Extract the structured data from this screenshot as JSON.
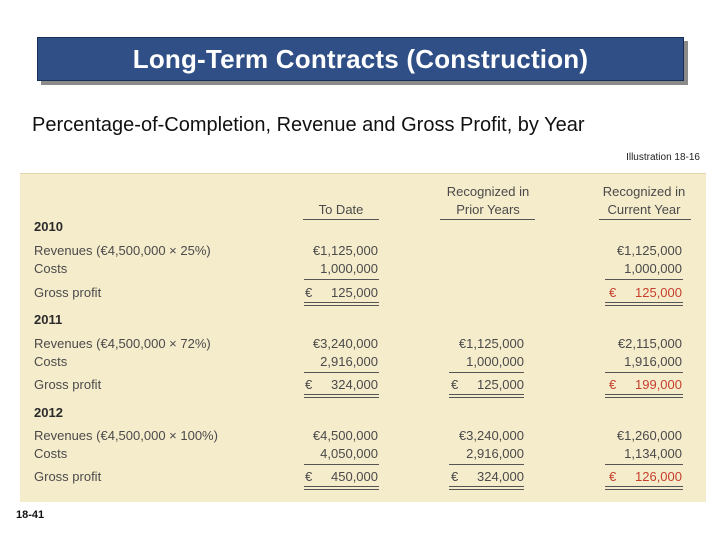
{
  "slide": {
    "title": "Long-Term Contracts (Construction)",
    "subtitle": "Percentage-of-Completion, Revenue and Gross Profit, by Year",
    "illustration": "Illustration 18-16",
    "page_number": "18-41"
  },
  "table": {
    "headers": {
      "to_date": "To Date",
      "prior_line1": "Recognized in",
      "prior_line2": "Prior Years",
      "current_line1": "Recognized in",
      "current_line2": "Current Year"
    },
    "currency": "€",
    "years": [
      {
        "year": "2010",
        "rows": [
          {
            "label": "Revenues (€4,500,000 × 25%)",
            "to_date": "€1,125,000",
            "prior": "",
            "current": "€1,125,000"
          },
          {
            "label": "Costs",
            "to_date": "1,000,000",
            "prior": "",
            "current": "1,000,000"
          },
          {
            "label": "Gross profit",
            "to_date": "125,000",
            "prior": "",
            "current": "125,000"
          }
        ]
      },
      {
        "year": "2011",
        "rows": [
          {
            "label": "Revenues (€4,500,000 × 72%)",
            "to_date": "€3,240,000",
            "prior": "€1,125,000",
            "current": "€2,115,000"
          },
          {
            "label": "Costs",
            "to_date": "2,916,000",
            "prior": "1,000,000",
            "current": "1,916,000"
          },
          {
            "label": "Gross profit",
            "to_date": "324,000",
            "prior": "125,000",
            "current": "199,000"
          }
        ]
      },
      {
        "year": "2012",
        "rows": [
          {
            "label": "Revenues (€4,500,000 × 100%)",
            "to_date": "€4,500,000",
            "prior": "€3,240,000",
            "current": "€1,260,000"
          },
          {
            "label": "Costs",
            "to_date": "4,050,000",
            "prior": "2,916,000",
            "current": "1,134,000"
          },
          {
            "label": "Gross profit",
            "to_date": "450,000",
            "prior": "324,000",
            "current": "126,000"
          }
        ]
      }
    ],
    "colors": {
      "highlight": "#c6402f",
      "panel": "#f5eccc",
      "title_bar": "#2f4f86"
    }
  }
}
